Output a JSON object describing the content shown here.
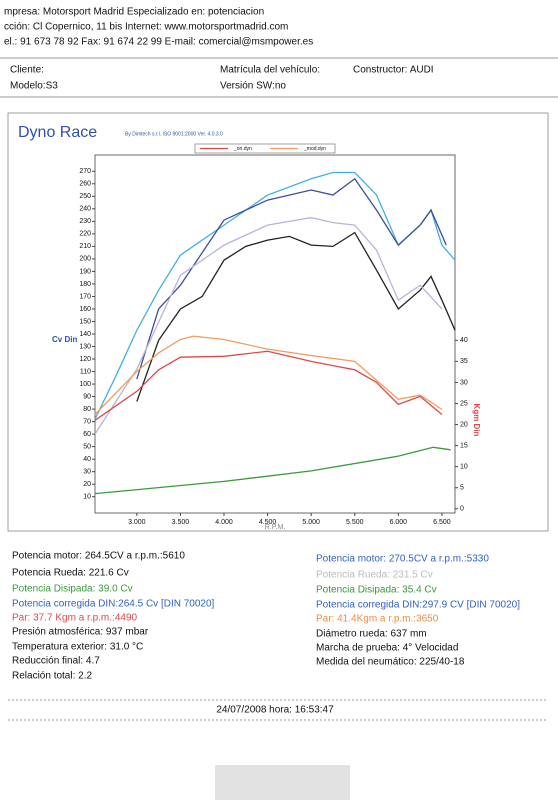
{
  "header": {
    "lines": [
      "mpresa: Motorsport Madrid    Especializado en: potenciacion",
      "cción: Cl Copernico, 11 bis Internet: www.motorsportmadrid.com",
      "el.: 91 673 78 92 Fax: 91 674 22 99 E-mail: comercial@msmpower.es"
    ]
  },
  "client": {
    "cliente": "Cliente:",
    "matricula": "Matrícula del vehículo:",
    "constructor": "Constructor: AUDI",
    "modelo": "Modelo:S3",
    "version": "Versión SW:no"
  },
  "chart_data": {
    "type": "line",
    "title": "Dyno Race",
    "subtitle": "By Dimtech s.r.l.  ISO 9001:2000  Ver. 4.0.3.0",
    "x_label": "R.P.M.",
    "y_label": "Cv Din",
    "y2_label": "Kgm Din",
    "xlim": [
      2520,
      6650
    ],
    "ylim": [
      -3,
      283
    ],
    "y2lim": [
      -1,
      84
    ],
    "xticks": [
      {
        "value": 3000,
        "label": "3.000"
      },
      {
        "value": 3500,
        "label": "3.500"
      },
      {
        "value": 4000,
        "label": "4.000"
      },
      {
        "value": 4500,
        "label": "4.500"
      },
      {
        "value": 5000,
        "label": "5.000"
      },
      {
        "value": 5500,
        "label": "5.500"
      },
      {
        "value": 6000,
        "label": "6.000"
      },
      {
        "value": 6500,
        "label": "6.500"
      }
    ],
    "yticks": [
      10,
      20,
      30,
      40,
      50,
      60,
      70,
      80,
      90,
      100,
      110,
      120,
      130,
      140,
      150,
      160,
      170,
      180,
      190,
      200,
      210,
      220,
      230,
      240,
      250,
      260,
      270
    ],
    "y2ticks": [
      0,
      5,
      10,
      15,
      20,
      25,
      30,
      35,
      40
    ],
    "series": [
      {
        "color": "#222222",
        "x": [
          3000,
          3250,
          3500,
          3750,
          4000,
          4250,
          4500,
          4750,
          5000,
          5250,
          5500,
          5750,
          6000,
          6250,
          6375,
          6500,
          6650
        ],
        "values": [
          86,
          135,
          160,
          170,
          199,
          210,
          215,
          218,
          211,
          210,
          221,
          191,
          160,
          175,
          186,
          167,
          143
        ]
      },
      {
        "color": "#3fb0e6",
        "x": [
          2520,
          2750,
          3000,
          3250,
          3500,
          4000,
          4500,
          5000,
          5250,
          5500,
          5750,
          6000,
          6250,
          6375,
          6500,
          6650
        ],
        "values": [
          72,
          105,
          143,
          175,
          203,
          227,
          251,
          264,
          269,
          269,
          251,
          211,
          227,
          239,
          211,
          199
        ]
      },
      {
        "color": "#3a4f9a",
        "x": [
          3000,
          3250,
          3500,
          4000,
          4500,
          5000,
          5250,
          5500,
          5750,
          6000,
          6250,
          6375,
          6550
        ],
        "values": [
          104,
          160,
          179,
          231,
          247,
          255,
          251,
          264,
          239,
          211,
          227,
          239,
          211
        ]
      },
      {
        "color": "#b8b4d6",
        "x": [
          2520,
          2750,
          3000,
          3500,
          4000,
          4500,
          5000,
          5250,
          5500,
          5750,
          6000,
          6250,
          6500
        ],
        "values": [
          60,
          85,
          112,
          187,
          211,
          227,
          233,
          229,
          227,
          207,
          167,
          179,
          160
        ]
      },
      {
        "name": "_ori.dyn",
        "color": "#e04848",
        "axis": "y2",
        "x": [
          2520,
          3000,
          3250,
          3500,
          4000,
          4500,
          5000,
          5250,
          5500,
          5750,
          6000,
          6250,
          6500
        ],
        "values": [
          21,
          27.9,
          33,
          36,
          36.2,
          37.4,
          35,
          34,
          33,
          30,
          24.8,
          26.7,
          22.4
        ]
      },
      {
        "name": "_mod.dyn",
        "color": "#f59a5a",
        "axis": "y2",
        "x": [
          2520,
          3000,
          3250,
          3500,
          3650,
          4000,
          4500,
          5000,
          5500,
          6000,
          6250,
          6500
        ],
        "values": [
          22.4,
          32.6,
          37,
          40.2,
          41,
          40.2,
          37.9,
          36.4,
          35,
          26,
          27,
          23.6
        ]
      },
      {
        "color": "#3a9a3a",
        "axis": "y2",
        "x": [
          2520,
          4000,
          5000,
          6000,
          6400,
          6600
        ],
        "values": [
          3.6,
          6.5,
          9,
          12.5,
          14.6,
          14
        ]
      }
    ]
  },
  "results": {
    "left": [
      "Potencia motor: 264.5CV a r.p.m.:5610",
      "Potencia Rueda: 221.6 Cv",
      "Potencia Disipada: 39.0 Cv",
      " Potencia corregida DIN:264.5 Cv  [DIN 70020]",
      "Par: 37.7 Kgm a r.p.m.:4490",
      "Presión atmosférica: 937 mbar",
      "Temperatura exterior: 31.0 °C",
      "Reducción final: 4.7",
      "Relación total: 2.2"
    ],
    "right": [
      "Potencia motor: 270.5CV a r.p.m.:5330",
      "Potencia Rueda: 231.5 Cv",
      "Potencia Disipada: 35.4 Cv",
      " Potencia corregida DIN:297.9 CV  [DIN 70020]",
      "Par: 41.4Kgm a r.p.m.:3650",
      "Diámetro rueda: 637 mm",
      "Marcha de prueba: 4° Velocidad",
      "Medida del neumático: 225/40-18"
    ]
  },
  "footer": {
    "date": "24/07/2008 hora: 16:53:47"
  }
}
